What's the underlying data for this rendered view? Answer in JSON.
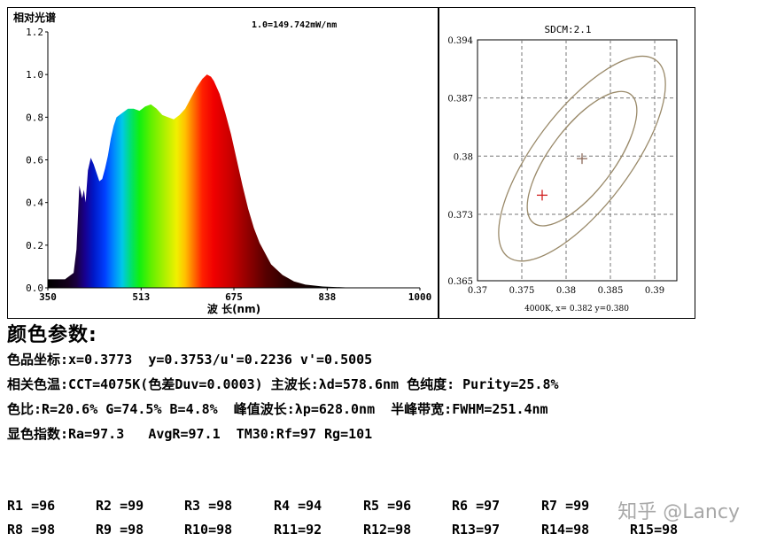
{
  "chart_data": [
    {
      "type": "area",
      "title": "相对光谱",
      "annotation": "1.0=149.742mW/nm",
      "xlabel": "波 长(nm)",
      "ylabel": "",
      "xlim": [
        350,
        1000
      ],
      "ylim": [
        0,
        1.2
      ],
      "xticks": [
        350,
        513,
        675,
        838,
        1000
      ],
      "yticks": [
        "0.0",
        "0.2",
        "0.4",
        "0.6",
        "0.8",
        "1.0",
        "1.2"
      ],
      "grid": false,
      "fill": "spectral",
      "x": [
        350,
        380,
        395,
        400,
        405,
        410,
        413,
        416,
        420,
        425,
        430,
        435,
        440,
        445,
        450,
        455,
        460,
        465,
        470,
        480,
        490,
        500,
        510,
        515,
        520,
        530,
        540,
        550,
        560,
        570,
        580,
        590,
        600,
        610,
        620,
        628,
        635,
        640,
        650,
        660,
        670,
        680,
        690,
        700,
        710,
        720,
        740,
        760,
        780,
        800,
        830,
        870,
        900,
        950,
        1000
      ],
      "y": [
        0.04,
        0.04,
        0.07,
        0.18,
        0.48,
        0.42,
        0.46,
        0.4,
        0.55,
        0.61,
        0.58,
        0.54,
        0.5,
        0.51,
        0.56,
        0.62,
        0.7,
        0.76,
        0.8,
        0.82,
        0.84,
        0.84,
        0.83,
        0.84,
        0.85,
        0.86,
        0.84,
        0.81,
        0.8,
        0.79,
        0.81,
        0.84,
        0.89,
        0.94,
        0.98,
        1.0,
        0.99,
        0.97,
        0.91,
        0.82,
        0.72,
        0.6,
        0.48,
        0.37,
        0.28,
        0.21,
        0.11,
        0.06,
        0.03,
        0.015,
        0.006,
        0.002,
        0.001,
        0.0,
        0.0
      ]
    },
    {
      "type": "scatter",
      "title": "SDCM:2.1",
      "caption": "4000K, x= 0.382 y=0.380",
      "xlim": [
        0.37,
        0.3925
      ],
      "ylim": [
        0.365,
        0.394
      ],
      "xticks": [
        "0.37",
        "0.375",
        "0.38",
        "0.385",
        "0.39"
      ],
      "yticks": [
        "0.365",
        "0.373",
        "0.38",
        "0.387",
        "0.394"
      ],
      "grid": true,
      "points": [
        {
          "x": 0.3773,
          "y": 0.3753,
          "color": "#d02020"
        },
        {
          "x": 0.3818,
          "y": 0.3797,
          "color": "#8b6a5a"
        }
      ],
      "ellipse_center": [
        0.3818,
        0.3797
      ],
      "ellipse_color": "#9a8a6a"
    }
  ],
  "params": {
    "heading": "颜色参数:",
    "line1": "色品坐标:x=0.3773  y=0.3753/u'=0.2236 v'=0.5005",
    "line2": "相关色温:CCT=4075K(色差Duv=0.0003) 主波长:λd=578.6nm 色纯度: Purity=25.8%",
    "line3": "色比:R=20.6% G=74.5% B=4.8%  峰值波长:λp=628.0nm  半峰带宽:FWHM=251.4nm",
    "line4": "显色指数:Ra=97.3   AvgR=97.1  TM30:Rf=97 Rg=101"
  },
  "rvalues": {
    "row1": [
      "R1 =96",
      "R2 =99",
      "R3 =98",
      "R4 =94",
      "R5 =96",
      "R6 =97",
      "R7 =99"
    ],
    "row2": [
      "R8 =98",
      "R9 =98",
      "R10=98",
      "R11=92",
      "R12=98",
      "R13=97",
      "R14=98",
      "R15=98"
    ]
  },
  "watermark": "知乎 @Lancy"
}
